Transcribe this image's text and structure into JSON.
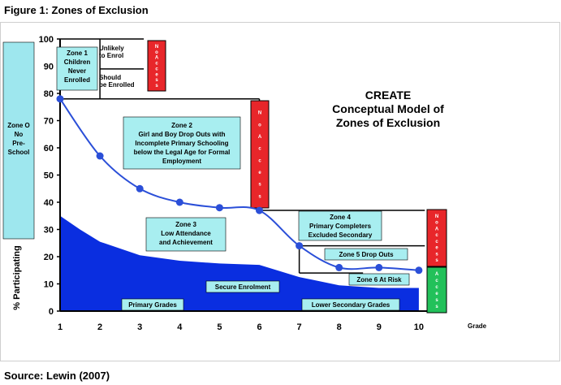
{
  "title": "Figure 1: Zones of Exclusion",
  "source": "Source: Lewin (2007)",
  "chart_data": {
    "type": "line",
    "title_lines": [
      "CREATE",
      "Conceptual Model of",
      "Zones of Exclusion"
    ],
    "xlabel": "Grade",
    "ylabel": "% Participating",
    "x_ticks": [
      "1",
      "2",
      "3",
      "4",
      "5",
      "6",
      "7",
      "8",
      "9",
      "10"
    ],
    "y_ticks": [
      "0",
      "10",
      "20",
      "30",
      "40",
      "50",
      "60",
      "70",
      "80",
      "90",
      "100"
    ],
    "xlim": [
      1,
      10.6
    ],
    "ylim": [
      0,
      100
    ],
    "grid": false,
    "series": [
      {
        "role": "participation",
        "color": "#2b4fd8",
        "x": [
          1,
          2,
          3,
          4,
          5,
          6,
          7,
          8,
          9,
          10
        ],
        "y": [
          78,
          57,
          45,
          40,
          38,
          37,
          24,
          16,
          16,
          15
        ]
      },
      {
        "role": "secure-enrolment-area",
        "color": "#0a2ee0",
        "x": [
          1,
          1.5,
          2,
          3,
          4,
          5,
          6,
          7,
          8,
          9,
          10
        ],
        "y": [
          35,
          30,
          25.5,
          20.5,
          18.5,
          17.5,
          17,
          12.5,
          9.5,
          8.5,
          8.5
        ]
      }
    ],
    "left_band": {
      "text": [
        "Zone O",
        "No",
        "Pre-",
        "School"
      ],
      "color": "#9ee7ee"
    },
    "zone_boxes": [
      {
        "id": "zone1",
        "text": [
          "Zone 1",
          "Children",
          "Never",
          "Enrolled"
        ]
      },
      {
        "id": "zone2",
        "text": [
          "Zone 2",
          "Girl and Boy Drop Outs with",
          "Incomplete Primary Schooling",
          "below the Legal Age for Formal",
          "Employment"
        ]
      },
      {
        "id": "zone3",
        "text": [
          "Zone 3",
          "Low Attendance",
          "and Achievement"
        ]
      },
      {
        "id": "zone4",
        "text": [
          "Zone 4",
          "Primary Completers",
          "Excluded Secondary"
        ]
      },
      {
        "id": "zone5",
        "text": [
          "Zone 5 Drop Outs"
        ]
      },
      {
        "id": "zone6",
        "text": [
          "Zone 6 At Risk"
        ]
      },
      {
        "id": "secure",
        "text": [
          "Secure Enrolment"
        ]
      },
      {
        "id": "primary",
        "text": [
          "Primary Grades"
        ]
      },
      {
        "id": "lowersec",
        "text": [
          "Lower Secondary Grades"
        ]
      }
    ],
    "annotations": {
      "unlikely": [
        "Unlikely",
        "to Enrol"
      ],
      "should": [
        "Should",
        "be Enrolled"
      ],
      "no_access": [
        "N",
        "o",
        "A",
        "c",
        "c",
        "e",
        "s",
        "s"
      ],
      "access": [
        "A",
        "c",
        "c",
        "e",
        "s",
        "s"
      ]
    },
    "colors": {
      "box_fill": "#a8eef0",
      "no_access": "#e8262a",
      "access": "#22c15a",
      "frame_line": "#000000",
      "marker": "#2b4fd8"
    }
  }
}
